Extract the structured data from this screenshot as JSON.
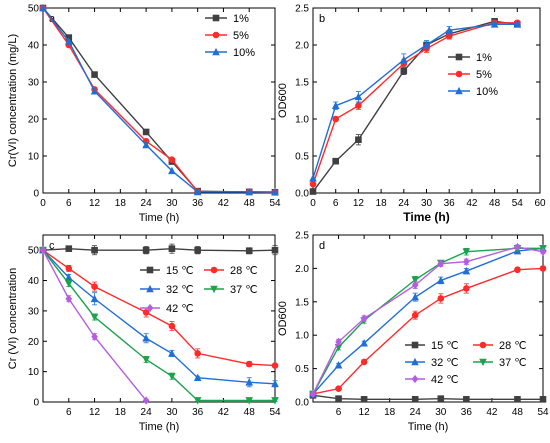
{
  "chart_data": [
    {
      "type": "line",
      "panel_label": "a",
      "xlabel": "Time (h)",
      "ylabel": "Cr(VI) concentration (mg/L)",
      "xlim": [
        0,
        54
      ],
      "ylim": [
        0,
        50
      ],
      "xticks": [
        0,
        6,
        12,
        18,
        24,
        30,
        36,
        42,
        48,
        54
      ],
      "yticks": [
        0,
        10,
        20,
        30,
        40,
        50
      ],
      "legend_position": "top-right",
      "x": [
        0,
        6,
        12,
        24,
        30,
        36,
        48,
        54
      ],
      "series": [
        {
          "name": "1%",
          "color": "#404040",
          "marker": "square",
          "values": [
            50,
            42,
            32,
            16.5,
            8.5,
            0.5,
            0.3,
            0.2
          ]
        },
        {
          "name": "5%",
          "color": "#ff2a2a",
          "marker": "circle",
          "values": [
            50,
            40,
            28,
            14,
            9,
            0.4,
            0.3,
            0.2
          ]
        },
        {
          "name": "10%",
          "color": "#1f6fd6",
          "marker": "triangle",
          "values": [
            50,
            41,
            27.5,
            13,
            6,
            0.3,
            0.3,
            0.3
          ]
        }
      ]
    },
    {
      "type": "line",
      "panel_label": "b",
      "xlabel": "Time (h)",
      "ylabel": "OD600",
      "xlim": [
        0,
        60
      ],
      "ylim": [
        0,
        2.5
      ],
      "xticks": [
        0,
        6,
        12,
        18,
        24,
        30,
        36,
        42,
        48,
        54,
        60
      ],
      "yticks": [
        0.0,
        0.5,
        1.0,
        1.5,
        2.0,
        2.5
      ],
      "legend_position": "right",
      "x": [
        0,
        6,
        12,
        24,
        30,
        36,
        48,
        54
      ],
      "series": [
        {
          "name": "1%",
          "color": "#404040",
          "marker": "square",
          "values": [
            0.02,
            0.43,
            0.72,
            1.65,
            2.0,
            2.15,
            2.32,
            2.28
          ],
          "errors": [
            0,
            0.03,
            0.07,
            0.05,
            0.04,
            0.04,
            0.03,
            0.03
          ]
        },
        {
          "name": "5%",
          "color": "#ff2a2a",
          "marker": "circle",
          "values": [
            0.12,
            1.0,
            1.18,
            1.75,
            1.95,
            2.12,
            2.3,
            2.3
          ],
          "errors": [
            0,
            0.03,
            0.05,
            0.05,
            0.05,
            0.04,
            0.03,
            0.03
          ]
        },
        {
          "name": "10%",
          "color": "#1f6fd6",
          "marker": "triangle",
          "values": [
            0.2,
            1.18,
            1.3,
            1.8,
            2.0,
            2.2,
            2.28,
            2.28
          ],
          "errors": [
            0,
            0.05,
            0.07,
            0.08,
            0.06,
            0.05,
            0.03,
            0.03
          ]
        }
      ]
    },
    {
      "type": "line",
      "panel_label": "c",
      "xlabel": "Time (h)",
      "ylabel": "Cr (VI) concentration",
      "xlim": [
        0,
        54
      ],
      "ylim": [
        0,
        55
      ],
      "xticks": [
        6,
        12,
        18,
        24,
        30,
        36,
        42,
        48,
        54
      ],
      "yticks": [
        0,
        10,
        20,
        30,
        40,
        50
      ],
      "legend_position": "center-right",
      "x": [
        0,
        6,
        12,
        24,
        30,
        36,
        48,
        54
      ],
      "series": [
        {
          "name": "15 ℃",
          "color": "#404040",
          "marker": "square",
          "values": [
            50,
            50.5,
            50,
            50,
            50.5,
            50,
            49.8,
            50
          ],
          "errors": [
            0,
            0.5,
            1.5,
            1.2,
            1.5,
            1.2,
            1.0,
            1.5
          ]
        },
        {
          "name": "28 ℃",
          "color": "#ff2a2a",
          "marker": "circle",
          "values": [
            50,
            44,
            38,
            29.5,
            25,
            16,
            12.5,
            12
          ],
          "errors": [
            0,
            1.0,
            1.5,
            1.5,
            1.5,
            1.5,
            0.8,
            0.5
          ]
        },
        {
          "name": "32 ℃",
          "color": "#1f6fd6",
          "marker": "triangle",
          "values": [
            50,
            41,
            34,
            21,
            16,
            8,
            6.5,
            6
          ],
          "errors": [
            0,
            1.0,
            2.0,
            1.5,
            1.0,
            0.5,
            1.5,
            1.0
          ]
        },
        {
          "name": "37 ℃",
          "color": "#1aa34a",
          "marker": "triangle-down",
          "values": [
            50,
            39,
            28,
            14,
            8.5,
            0.5,
            0.5,
            0.5
          ],
          "errors": [
            0,
            1.0,
            1.0,
            1.0,
            1.0,
            0.3,
            0.3,
            0.3
          ]
        },
        {
          "name": "42 ℃",
          "color": "#b45de0",
          "marker": "diamond",
          "values": [
            50,
            34,
            21.5,
            0.5
          ],
          "x": [
            0,
            6,
            12,
            24
          ],
          "errors": [
            0,
            1.0,
            1.0,
            0.3
          ]
        }
      ]
    },
    {
      "type": "line",
      "panel_label": "d",
      "xlabel": "Time (h)",
      "ylabel": "OD600",
      "xlim": [
        0,
        54
      ],
      "ylim": [
        0,
        2.5
      ],
      "xticks": [
        6,
        12,
        18,
        24,
        30,
        36,
        42,
        48,
        54
      ],
      "yticks": [
        0.0,
        0.5,
        1.0,
        1.5,
        2.0,
        2.5
      ],
      "legend_position": "bottom-right",
      "x": [
        0,
        6,
        12,
        24,
        30,
        36,
        48,
        54
      ],
      "series": [
        {
          "name": "15 ℃",
          "color": "#404040",
          "marker": "square",
          "values": [
            0.1,
            0.05,
            0.04,
            0.04,
            0.05,
            0.04,
            0.04,
            0.04
          ],
          "errors": [
            0,
            0.01,
            0.01,
            0.01,
            0.01,
            0.01,
            0.01,
            0.01
          ]
        },
        {
          "name": "28 ℃",
          "color": "#ff2a2a",
          "marker": "circle",
          "values": [
            0.12,
            0.2,
            0.6,
            1.3,
            1.55,
            1.7,
            1.98,
            2.0
          ],
          "errors": [
            0,
            0.02,
            0.03,
            0.06,
            0.07,
            0.07,
            0.03,
            0.03
          ]
        },
        {
          "name": "32 ℃",
          "color": "#1f6fd6",
          "marker": "triangle",
          "values": [
            0.12,
            0.55,
            0.88,
            1.57,
            1.82,
            1.96,
            2.26,
            2.3
          ],
          "errors": [
            0,
            0.03,
            0.03,
            0.06,
            0.05,
            0.04,
            0.04,
            0.03
          ]
        },
        {
          "name": "37 ℃",
          "color": "#1aa34a",
          "marker": "triangle-down",
          "values": [
            0.12,
            0.82,
            1.22,
            1.83,
            2.08,
            2.25,
            2.3,
            2.3
          ],
          "errors": [
            0,
            0.04,
            0.04,
            0.05,
            0.04,
            0.05,
            0.03,
            0.03
          ]
        },
        {
          "name": "42 ℃",
          "color": "#b45de0",
          "marker": "diamond",
          "values": [
            0.12,
            0.9,
            1.25,
            1.75,
            2.07,
            2.1,
            2.32,
            2.25
          ],
          "errors": [
            0,
            0.04,
            0.04,
            0.05,
            0.04,
            0.04,
            0.03,
            0.03
          ]
        }
      ]
    }
  ]
}
